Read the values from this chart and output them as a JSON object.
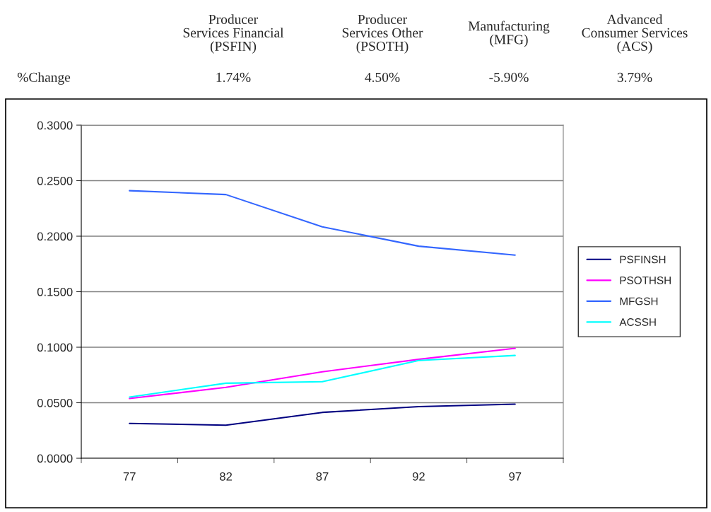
{
  "chart_data": {
    "type": "line",
    "annotations": [
      "Producer\nServices Financial\n(PSFIN)",
      "Producer\nServices Other\n(PSOTH)",
      "Manufacturing\n(MFG)",
      "Advanced\nConsumer Services\n(ACS)",
      "%Change",
      "1.74%",
      "4.50%",
      "-5.90%",
      "3.79%"
    ],
    "categories": [
      "77",
      "82",
      "87",
      "92",
      "97"
    ],
    "series": [
      {
        "name": "PSFINSH",
        "color": "#000080",
        "values": [
          0.0314,
          0.0298,
          0.0413,
          0.0465,
          0.0487
        ]
      },
      {
        "name": "PSOTHSH",
        "color": "#ff00ff",
        "values": [
          0.0538,
          0.0638,
          0.0779,
          0.0891,
          0.099
        ]
      },
      {
        "name": "MFGSH",
        "color": "#3366ff",
        "values": [
          0.241,
          0.2375,
          0.2085,
          0.191,
          0.183
        ]
      },
      {
        "name": "ACSSH",
        "color": "#00ffff",
        "values": [
          0.0551,
          0.0676,
          0.0689,
          0.0881,
          0.0926
        ]
      }
    ],
    "ylim": [
      0,
      0.3
    ],
    "yticks": [
      {
        "value": 0,
        "label": "0.0000"
      },
      {
        "value": 0.05,
        "label": "0.0500"
      },
      {
        "value": 0.1,
        "label": "0.1000"
      },
      {
        "value": 0.15,
        "label": "0.1500"
      },
      {
        "value": 0.2,
        "label": "0.2000"
      },
      {
        "value": 0.25,
        "label": "0.2500"
      },
      {
        "value": 0.3,
        "label": "0.3000"
      }
    ],
    "grid": "y",
    "legend": "right",
    "marker": "none",
    "line_style": "solid"
  }
}
